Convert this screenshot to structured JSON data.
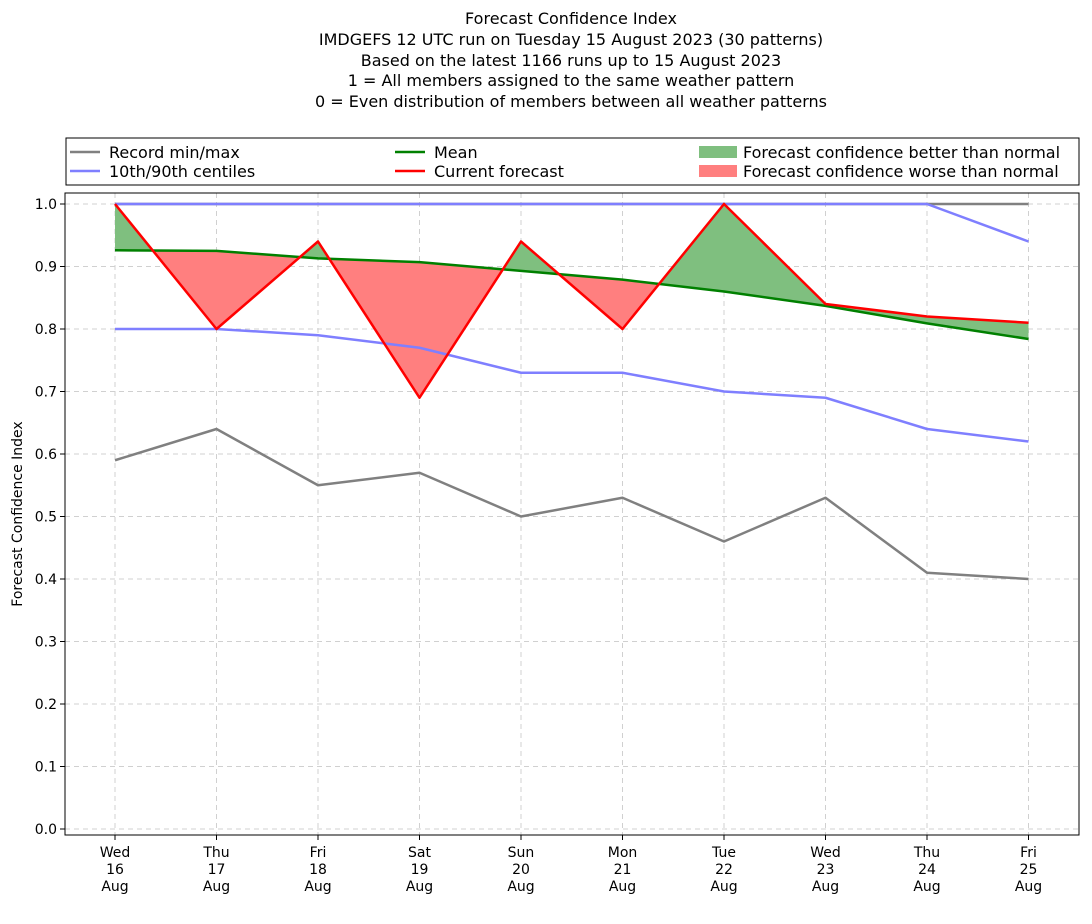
{
  "chart_data": {
    "type": "line",
    "title_lines": [
      "Forecast Confidence Index",
      "IMDGEFS 12 UTC run on Tuesday 15 August 2023 (30 patterns)",
      "Based on the latest 1166 runs up to 15 August 2023",
      "1 = All members assigned to the same weather pattern",
      "0 = Even distribution of members between all weather patterns"
    ],
    "ylabel": "Forecast Confidence Index",
    "ylim": [
      0.0,
      1.0
    ],
    "yticks": [
      "0.0",
      "0.1",
      "0.2",
      "0.3",
      "0.4",
      "0.5",
      "0.6",
      "0.7",
      "0.8",
      "0.9",
      "1.0"
    ],
    "categories": [
      [
        "Wed",
        "16",
        "Aug"
      ],
      [
        "Thu",
        "17",
        "Aug"
      ],
      [
        "Fri",
        "18",
        "Aug"
      ],
      [
        "Sat",
        "19",
        "Aug"
      ],
      [
        "Sun",
        "20",
        "Aug"
      ],
      [
        "Mon",
        "21",
        "Aug"
      ],
      [
        "Tue",
        "22",
        "Aug"
      ],
      [
        "Wed",
        "23",
        "Aug"
      ],
      [
        "Thu",
        "24",
        "Aug"
      ],
      [
        "Fri",
        "25",
        "Aug"
      ]
    ],
    "grid": true,
    "legend_position": "top",
    "series": {
      "record_max": [
        1.0,
        1.0,
        1.0,
        1.0,
        1.0,
        1.0,
        1.0,
        1.0,
        1.0,
        1.0
      ],
      "record_min": [
        0.59,
        0.64,
        0.55,
        0.57,
        0.5,
        0.53,
        0.46,
        0.53,
        0.41,
        0.4
      ],
      "p90": [
        1.0,
        1.0,
        1.0,
        1.0,
        1.0,
        1.0,
        1.0,
        1.0,
        1.0,
        0.94
      ],
      "p10": [
        0.8,
        0.8,
        0.79,
        0.77,
        0.73,
        0.73,
        0.7,
        0.69,
        0.64,
        0.62
      ],
      "mean": [
        0.926,
        0.925,
        0.913,
        0.907,
        0.893,
        0.879,
        0.86,
        0.837,
        0.809,
        0.784
      ],
      "current": [
        1.0,
        0.8,
        0.94,
        0.69,
        0.94,
        0.8,
        1.0,
        0.84,
        0.82,
        0.81
      ]
    },
    "colors": {
      "record": "#808080",
      "centiles": "#7f7fff",
      "mean": "#008000",
      "current": "#ff0000",
      "better": "#7fbf7f",
      "worse": "#ff7f7f",
      "grid": "#d0d0d0"
    },
    "legend": [
      {
        "key": "record",
        "label": "Record min/max",
        "kind": "line"
      },
      {
        "key": "centiles",
        "label": "10th/90th centiles",
        "kind": "line"
      },
      {
        "key": "mean",
        "label": "Mean",
        "kind": "line"
      },
      {
        "key": "current",
        "label": "Current forecast",
        "kind": "line"
      },
      {
        "key": "better",
        "label": "Forecast confidence better than normal",
        "kind": "patch"
      },
      {
        "key": "worse",
        "label": "Forecast confidence worse than normal",
        "kind": "patch"
      }
    ]
  }
}
